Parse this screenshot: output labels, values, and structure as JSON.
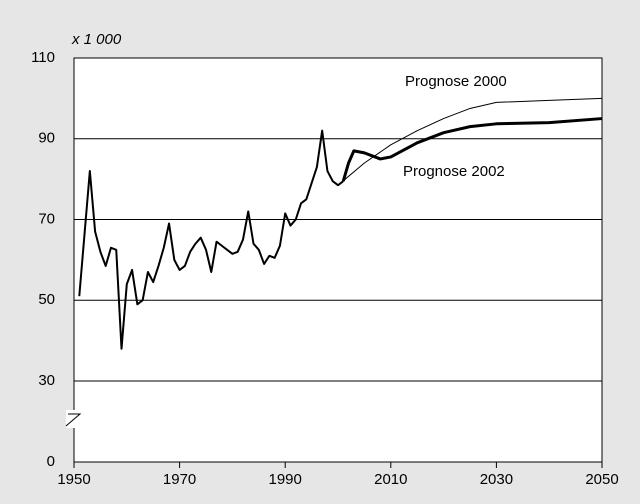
{
  "chart_data": {
    "type": "line",
    "annotation": "x 1 000",
    "xlim": [
      1950,
      2050
    ],
    "xticks": [
      1950,
      1970,
      1990,
      2010,
      2030,
      2050
    ],
    "ylim": [
      30,
      110
    ],
    "yticks": [
      0,
      30,
      50,
      70,
      90,
      110
    ],
    "axis_break": true,
    "grid": true,
    "series": [
      {
        "color": "#000000",
        "line_width": 2,
        "x": [
          1951,
          1953,
          1954,
          1955,
          1956,
          1957,
          1958,
          1959,
          1960,
          1961,
          1962,
          1963,
          1964,
          1965,
          1966,
          1967,
          1968,
          1969,
          1970,
          1971,
          1972,
          1973,
          1974,
          1975,
          1976,
          1977,
          1978,
          1979,
          1980,
          1981,
          1982,
          1983,
          1984,
          1985,
          1986,
          1987,
          1988,
          1989,
          1990,
          1991,
          1992,
          1993,
          1994,
          1995,
          1996,
          1997,
          1998,
          1999,
          2000,
          2001
        ],
        "values": [
          51,
          82,
          67,
          62,
          58.5,
          63,
          62.5,
          38,
          54,
          57.5,
          49,
          50,
          57,
          54.5,
          58.5,
          63,
          69,
          60,
          57.5,
          58.5,
          62,
          64,
          65.5,
          62.5,
          57,
          64.5,
          63.5,
          62.5,
          61.5,
          62,
          65,
          72,
          64,
          62.5,
          59,
          61,
          60.5,
          63.5,
          71.5,
          68.5,
          70,
          74,
          75,
          79,
          83,
          92,
          82,
          79.5,
          78.5,
          79.5
        ]
      },
      {
        "name": "Prognose 2000",
        "color": "#000000",
        "line_width": 1,
        "x": [
          2000,
          2005,
          2010,
          2015,
          2020,
          2025,
          2030,
          2040,
          2050
        ],
        "values": [
          78.5,
          84,
          88.5,
          92,
          95,
          97.5,
          99,
          99.5,
          100
        ]
      },
      {
        "name": "Prognose 2002",
        "color": "#000000",
        "line_width": 3,
        "x": [
          2001,
          2002,
          2003,
          2005,
          2008,
          2010,
          2015,
          2020,
          2025,
          2030,
          2040,
          2050
        ],
        "values": [
          79.5,
          84,
          87,
          86.5,
          85,
          85.5,
          89,
          91.5,
          93,
          93.7,
          94,
          95
        ]
      }
    ]
  }
}
